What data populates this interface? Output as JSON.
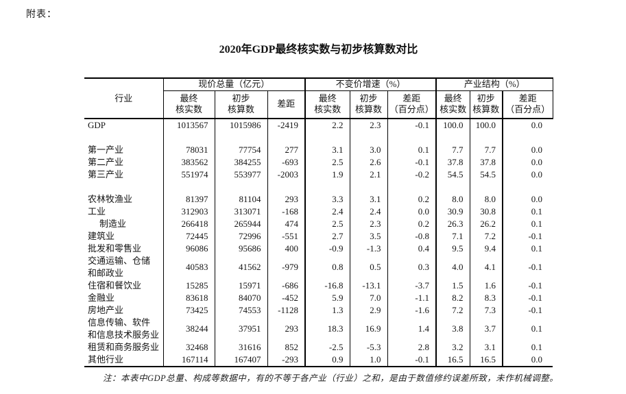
{
  "page": {
    "prefix_label": "附表：",
    "title": "2020年GDP最终核实数与初步核算数对比",
    "note": "注：本表中GDP总量、构成等数据中，有的不等于各产业（行业）之和，是由于数值修约误差所致，未作机械调整。"
  },
  "table": {
    "corner_header": "行业",
    "groups": [
      {
        "label": "现价总量（亿元）",
        "cols": [
          "最终\n核实数",
          "初步\n核算数",
          "差距"
        ]
      },
      {
        "label": "不变价增速（%）",
        "cols": [
          "最终\n核实数",
          "初步\n核算数",
          "差距\n（百分点）"
        ]
      },
      {
        "label": "产业结构（%）",
        "cols": [
          "最终\n核实数",
          "初步\n核算数",
          "差距\n（百分点）"
        ]
      }
    ],
    "rows": [
      {
        "label": "GDP",
        "values": [
          "1013567",
          "1015986",
          "-2419",
          "2.2",
          "2.3",
          "-0.1",
          "100.0",
          "100.0",
          "0.0"
        ]
      },
      {
        "blank": true
      },
      {
        "label": "第一产业",
        "values": [
          "78031",
          "77754",
          "277",
          "3.1",
          "3.0",
          "0.1",
          "7.7",
          "7.7",
          "0.0"
        ]
      },
      {
        "label": "第二产业",
        "values": [
          "383562",
          "384255",
          "-693",
          "2.5",
          "2.6",
          "-0.1",
          "37.8",
          "37.8",
          "0.0"
        ]
      },
      {
        "label": "第三产业",
        "values": [
          "551974",
          "553977",
          "-2003",
          "1.9",
          "2.1",
          "-0.2",
          "54.5",
          "54.5",
          "0.0"
        ]
      },
      {
        "blank": true
      },
      {
        "label": "农林牧渔业",
        "values": [
          "81397",
          "81104",
          "293",
          "3.3",
          "3.1",
          "0.2",
          "8.0",
          "8.0",
          "0.0"
        ]
      },
      {
        "label": "工业",
        "values": [
          "312903",
          "313071",
          "-168",
          "2.4",
          "2.4",
          "0.0",
          "30.9",
          "30.8",
          "0.1"
        ]
      },
      {
        "label": "制造业",
        "indent": true,
        "values": [
          "266418",
          "265944",
          "474",
          "2.5",
          "2.3",
          "0.2",
          "26.3",
          "26.2",
          "0.1"
        ]
      },
      {
        "label": "建筑业",
        "values": [
          "72445",
          "72996",
          "-551",
          "2.7",
          "3.5",
          "-0.8",
          "7.1",
          "7.2",
          "-0.1"
        ]
      },
      {
        "label": "批发和零售业",
        "values": [
          "96086",
          "95686",
          "400",
          "-0.9",
          "-1.3",
          "0.4",
          "9.5",
          "9.4",
          "0.1"
        ]
      },
      {
        "label": "交通运输、仓储\n和邮政业",
        "values": [
          "40583",
          "41562",
          "-979",
          "0.8",
          "0.5",
          "0.3",
          "4.0",
          "4.1",
          "-0.1"
        ]
      },
      {
        "label": "住宿和餐饮业",
        "values": [
          "15285",
          "15971",
          "-686",
          "-16.8",
          "-13.1",
          "-3.7",
          "1.5",
          "1.6",
          "-0.1"
        ]
      },
      {
        "label": "金融业",
        "values": [
          "83618",
          "84070",
          "-452",
          "5.9",
          "7.0",
          "-1.1",
          "8.2",
          "8.3",
          "-0.1"
        ]
      },
      {
        "label": "房地产业",
        "values": [
          "73425",
          "74553",
          "-1128",
          "1.3",
          "2.9",
          "-1.6",
          "7.2",
          "7.3",
          "-0.1"
        ]
      },
      {
        "label": "信息传输、软件\n和信息技术服务业",
        "values": [
          "38244",
          "37951",
          "293",
          "18.3",
          "16.9",
          "1.4",
          "3.8",
          "3.7",
          "0.1"
        ]
      },
      {
        "label": "租赁和商务服务业",
        "values": [
          "32468",
          "31616",
          "852",
          "-2.5",
          "-5.3",
          "2.8",
          "3.2",
          "3.1",
          "0.1"
        ]
      },
      {
        "label": "其他行业",
        "values": [
          "167114",
          "167407",
          "-293",
          "0.9",
          "1.0",
          "-0.1",
          "16.5",
          "16.5",
          "0.0"
        ]
      }
    ]
  }
}
